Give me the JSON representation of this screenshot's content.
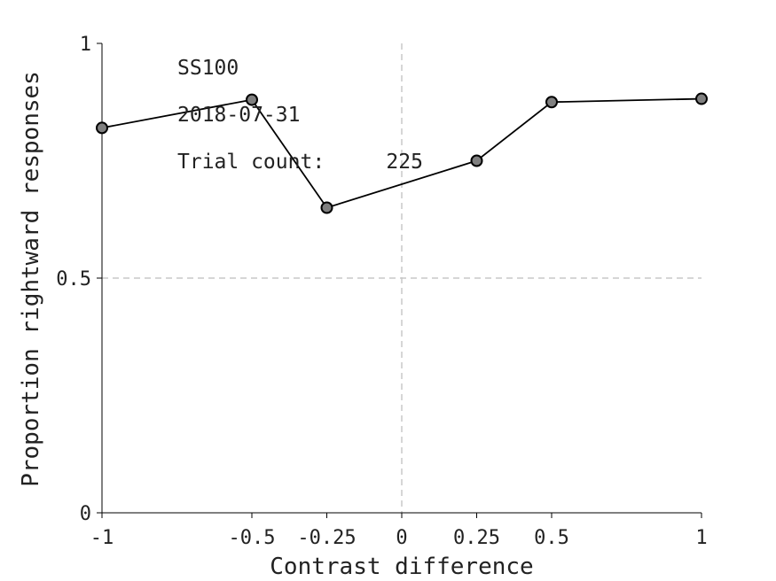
{
  "chart_data": {
    "type": "line",
    "x": [
      -1,
      -0.5,
      -0.25,
      0.25,
      0.5,
      1
    ],
    "series": [
      {
        "values": [
          0.82,
          0.88,
          0.65,
          0.75,
          0.875,
          0.882
        ]
      }
    ],
    "xlabel": "Contrast difference",
    "ylabel": "Proportion rightward responses",
    "xlim": [
      -1,
      1
    ],
    "ylim": [
      0,
      1
    ],
    "xticks": [
      -1,
      -0.5,
      -0.25,
      0,
      0.25,
      0.5,
      1
    ],
    "xtick_labels": [
      "-1",
      "-0.5",
      "-0.25",
      "0",
      "0.25",
      "0.5",
      "1"
    ],
    "yticks": [
      0,
      0.5,
      1
    ],
    "ytick_labels": [
      "0",
      "0.5",
      "1"
    ],
    "reference_lines": {
      "x": 0,
      "y": 0.5
    },
    "line_color": "#000000",
    "marker_fill": "#808080",
    "reference_color": "#c8c8c8",
    "grid": false,
    "annotations": [
      "SS100",
      "2018-07-31",
      "Trial count:     225"
    ]
  }
}
